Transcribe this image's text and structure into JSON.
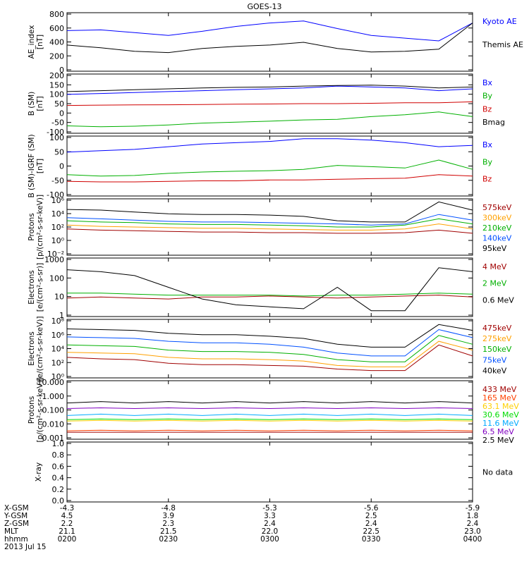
{
  "title": "GOES-13",
  "panels": [
    {
      "id": "ae",
      "ylabel": [
        "AE_index",
        "[nT]"
      ],
      "yticks": [
        "0",
        "200",
        "400",
        "600",
        "800"
      ],
      "scale": "linear",
      "ylim": [
        0,
        850
      ],
      "legend": [
        {
          "text": "Kyoto AE",
          "color": "#0000ff"
        },
        {
          "text": "Themis AE",
          "color": "#000000"
        }
      ]
    },
    {
      "id": "bsm",
      "ylabel": [
        "B (SM)",
        "[nT]"
      ],
      "yticks": [
        "200",
        "150",
        "100",
        "50",
        "0",
        "-50",
        "-100"
      ],
      "scale": "linear",
      "ylim": [
        -110,
        210
      ],
      "legend": [
        {
          "text": "Bx",
          "color": "#0000ff"
        },
        {
          "text": "By",
          "color": "#00b000"
        },
        {
          "text": "Bz",
          "color": "#d00000"
        },
        {
          "text": "Bmag",
          "color": "#000000"
        }
      ]
    },
    {
      "id": "bigrf",
      "ylabel": [
        "B (SM)-IGRF (SM)",
        "[nT]"
      ],
      "yticks": [
        "100",
        "50",
        "0",
        "-50",
        "-100"
      ],
      "scale": "linear",
      "ylim": [
        -115,
        110
      ],
      "legend": [
        {
          "text": "Bx",
          "color": "#0000ff"
        },
        {
          "text": "By",
          "color": "#00b000"
        },
        {
          "text": "Bz",
          "color": "#d00000"
        }
      ]
    },
    {
      "id": "protons_kev",
      "ylabel": [
        "Protons",
        "[p/(cm²-s-sr-keV)]"
      ],
      "yticks": [
        "10⁶",
        "10⁴",
        "10²",
        "10⁰",
        "10⁻²"
      ],
      "scale": "log",
      "ylim": [
        -3,
        6
      ],
      "legend": [
        {
          "text": "575keV",
          "color": "#a00000"
        },
        {
          "text": "300keV",
          "color": "#ffa000"
        },
        {
          "text": "210keV",
          "color": "#00b000"
        },
        {
          "text": "140keV",
          "color": "#0050ff"
        },
        {
          "text": "95keV",
          "color": "#000000"
        }
      ]
    },
    {
      "id": "electrons_mev",
      "ylabel": [
        "Electrons",
        "[e/(cm²-s-sr)]"
      ],
      "yticks": [
        "1000",
        "100",
        "10",
        "1"
      ],
      "scale": "log",
      "ylim": [
        0,
        3
      ],
      "legend": [
        {
          "text": "4 MeV",
          "color": "#a00000"
        },
        {
          "text": "2 MeV",
          "color": "#00b000"
        },
        {
          "text": "0.6 MeV",
          "color": "#000000"
        }
      ]
    },
    {
      "id": "electrons_kev",
      "ylabel": [
        "Electrons",
        "[e/(cm²-s-sr-keV)]"
      ],
      "yticks": [
        "10⁸",
        "10⁶",
        "10⁴",
        "10²",
        "10⁰"
      ],
      "scale": "log",
      "ylim": [
        0,
        8
      ],
      "legend": [
        {
          "text": "475keV",
          "color": "#a00000"
        },
        {
          "text": "275keV",
          "color": "#ffa000"
        },
        {
          "text": "150keV",
          "color": "#00b000"
        },
        {
          "text": "75keV",
          "color": "#0050ff"
        },
        {
          "text": "40keV",
          "color": "#000000"
        }
      ]
    },
    {
      "id": "protons_mev",
      "ylabel": [
        "Protons",
        "[p/(cm²-s-sr-keV)]"
      ],
      "yticks": [
        "10.000",
        "1.000",
        "0.100",
        "0.010",
        "0.001"
      ],
      "scale": "log",
      "ylim": [
        -3.2,
        1
      ],
      "legend": [
        {
          "text": "433 MeV",
          "color": "#a00000"
        },
        {
          "text": "165 MeV",
          "color": "#ff4000"
        },
        {
          "text": "63.1 MeV",
          "color": "#ffd000"
        },
        {
          "text": "30.6 MeV",
          "color": "#00dd00"
        },
        {
          "text": "11.6 MeV",
          "color": "#00aaff"
        },
        {
          "text": "6.5 MeV",
          "color": "#8000c0"
        },
        {
          "text": "2.5 MeV",
          "color": "#000000"
        }
      ]
    },
    {
      "id": "xray",
      "ylabel": [
        "X-ray"
      ],
      "yticks": [
        "1.0",
        "0.8",
        "0.6",
        "0.4",
        "0.2",
        "0.0"
      ],
      "scale": "linear",
      "ylim": [
        0,
        1
      ],
      "note": "No data",
      "legend": []
    }
  ],
  "xaxis": {
    "row_labels": [
      "X-GSM",
      "Y-GSM",
      "Z-GSM",
      "MLT",
      "hhmm",
      "2013 Jul 15"
    ],
    "columns": [
      [
        "-4.3",
        "4.5",
        "2.2",
        "21.1",
        "0200"
      ],
      [
        "-4.8",
        "3.9",
        "2.3",
        "21.5",
        "0230"
      ],
      [
        "-5.3",
        "3.3",
        "2.4",
        "22.0",
        "0300"
      ],
      [
        "-5.6",
        "2.5",
        "2.4",
        "22.5",
        "0330"
      ],
      [
        "-5.9",
        "1.8",
        "2.4",
        "23.0",
        "0400"
      ]
    ]
  },
  "chart_data": {
    "type": "line",
    "title": "GOES-13",
    "x": [
      "0200",
      "0210",
      "0220",
      "0230",
      "0240",
      "0250",
      "0300",
      "0310",
      "0320",
      "0330",
      "0340",
      "0350",
      "0400"
    ],
    "xlabel": "hhmm",
    "panels": [
      {
        "ylabel": "AE_index [nT]",
        "scale": "linear",
        "ylim": [
          0,
          850
        ],
        "series": [
          {
            "name": "Kyoto AE",
            "values": [
              590,
              600,
              560,
              520,
              580,
              650,
              700,
              730,
              620,
              520,
              480,
              440,
              700
            ]
          },
          {
            "name": "Themis AE",
            "values": [
              380,
              340,
              290,
              270,
              330,
              360,
              380,
              420,
              330,
              280,
              290,
              320,
              700
            ]
          }
        ]
      },
      {
        "ylabel": "B (SM) [nT]",
        "scale": "linear",
        "ylim": [
          -110,
          210
        ],
        "series": [
          {
            "name": "Bx",
            "values": [
              100,
              105,
              110,
              115,
              120,
              125,
              130,
              135,
              145,
              140,
              135,
              120,
              130
            ]
          },
          {
            "name": "By",
            "values": [
              -70,
              -75,
              -72,
              -65,
              -55,
              -50,
              -45,
              -38,
              -35,
              -20,
              -10,
              5,
              -20
            ]
          },
          {
            "name": "Bz",
            "values": [
              40,
              42,
              43,
              44,
              45,
              47,
              48,
              50,
              50,
              52,
              55,
              55,
              60
            ]
          },
          {
            "name": "Bmag",
            "values": [
              115,
              120,
              125,
              130,
              135,
              138,
              140,
              145,
              148,
              150,
              145,
              135,
              140
            ]
          }
        ]
      },
      {
        "ylabel": "B (SM)-IGRF (SM) [nT]",
        "scale": "linear",
        "ylim": [
          -115,
          110
        ],
        "series": [
          {
            "name": "Bx",
            "values": [
              50,
              55,
              60,
              70,
              80,
              85,
              90,
              100,
              100,
              95,
              85,
              70,
              75
            ]
          },
          {
            "name": "By",
            "values": [
              -35,
              -40,
              -38,
              -30,
              -25,
              -22,
              -20,
              -15,
              0,
              -5,
              -10,
              20,
              -15
            ]
          },
          {
            "name": "Bz",
            "values": [
              -60,
              -62,
              -62,
              -60,
              -58,
              -58,
              -55,
              -55,
              -52,
              -50,
              -48,
              -35,
              -40
            ]
          }
        ]
      },
      {
        "ylabel": "Protons [p/(cm2-s-sr-keV)]",
        "scale": "log",
        "ylim": [
          -3,
          6
        ],
        "series": [
          {
            "name": "575keV",
            "values": [
              1.2,
              1.0,
              0.9,
              0.8,
              0.7,
              0.7,
              0.6,
              0.6,
              0.5,
              0.5,
              0.6,
              1.0,
              0.5
            ]
          },
          {
            "name": "300keV",
            "values": [
              1.8,
              1.6,
              1.5,
              1.4,
              1.3,
              1.3,
              1.2,
              1.1,
              1.0,
              1.0,
              1.2,
              2.0,
              1.2
            ]
          },
          {
            "name": "210keV",
            "values": [
              2.5,
              2.3,
              2.2,
              2.0,
              1.9,
              1.9,
              1.8,
              1.7,
              1.5,
              1.5,
              1.8,
              2.8,
              2.0
            ]
          },
          {
            "name": "140keV",
            "values": [
              3.0,
              2.8,
              2.6,
              2.4,
              2.3,
              2.3,
              2.2,
              2.1,
              2.0,
              1.8,
              2.0,
              3.5,
              2.6
            ]
          },
          {
            "name": "95keV",
            "values": [
              4.3,
              4.2,
              3.9,
              3.6,
              3.5,
              3.5,
              3.4,
              3.2,
              2.5,
              2.3,
              2.3,
              5.5,
              4.2
            ]
          }
        ]
      },
      {
        "ylabel": "Electrons [e/(cm2-s-sr)]",
        "scale": "log",
        "ylim": [
          0,
          3
        ],
        "series": [
          {
            "name": "4 MeV",
            "values": [
              0.95,
              1.0,
              0.95,
              0.9,
              1.0,
              1.0,
              1.05,
              1.0,
              0.95,
              1.0,
              1.05,
              1.1,
              1.0
            ]
          },
          {
            "name": "2 MeV",
            "values": [
              1.2,
              1.2,
              1.15,
              1.1,
              1.1,
              1.1,
              1.1,
              1.05,
              1.1,
              1.1,
              1.15,
              1.2,
              1.15
            ]
          },
          {
            "name": "0.6 MeV",
            "values": [
              2.4,
              2.3,
              2.1,
              1.5,
              0.9,
              0.6,
              0.5,
              0.4,
              1.5,
              0.3,
              0.3,
              2.5,
              2.3
            ]
          }
        ]
      },
      {
        "ylabel": "Electrons [e/(cm2-s-sr-keV)]",
        "scale": "log",
        "ylim": [
          0,
          8
        ],
        "series": [
          {
            "name": "475keV",
            "values": [
              2.8,
              2.6,
              2.5,
              2.0,
              1.8,
              1.8,
              1.7,
              1.6,
              1.2,
              1.0,
              1.0,
              4.5,
              3.0
            ]
          },
          {
            "name": "275keV",
            "values": [
              3.5,
              3.4,
              3.3,
              2.8,
              2.6,
              2.6,
              2.5,
              2.3,
              1.7,
              1.5,
              1.5,
              5.0,
              3.8
            ]
          },
          {
            "name": "150keV",
            "values": [
              4.5,
              4.4,
              4.3,
              3.8,
              3.6,
              3.6,
              3.5,
              3.2,
              2.5,
              2.2,
              2.2,
              5.8,
              4.6
            ]
          },
          {
            "name": "75keV",
            "values": [
              5.6,
              5.5,
              5.4,
              5.0,
              4.8,
              4.8,
              4.6,
              4.2,
              3.4,
              3.0,
              3.0,
              6.6,
              5.5
            ]
          },
          {
            "name": "40keV",
            "values": [
              6.7,
              6.6,
              6.5,
              6.1,
              5.9,
              5.9,
              5.7,
              5.4,
              4.6,
              4.2,
              4.2,
              7.3,
              6.5
            ]
          }
        ]
      },
      {
        "ylabel": "Protons [p/(cm2-s-sr-keV)]",
        "scale": "log",
        "ylim": [
          -3.2,
          1
        ],
        "series": [
          {
            "name": "433 MeV",
            "values": [
              -2.7,
              -2.7,
              -2.7,
              -2.7,
              -2.7,
              -2.7,
              -2.7,
              -2.7,
              -2.7,
              -2.7,
              -2.7,
              -2.7,
              -2.7
            ]
          },
          {
            "name": "165 MeV",
            "values": [
              -2.6,
              -2.55,
              -2.6,
              -2.55,
              -2.6,
              -2.55,
              -2.6,
              -2.55,
              -2.6,
              -2.55,
              -2.6,
              -2.55,
              -2.6
            ]
          },
          {
            "name": "63.1 MeV",
            "values": [
              -1.9,
              -1.85,
              -1.9,
              -1.85,
              -1.9,
              -1.85,
              -1.9,
              -1.85,
              -1.9,
              -1.85,
              -1.9,
              -1.85,
              -1.9
            ]
          },
          {
            "name": "30.6 MeV",
            "values": [
              -1.8,
              -1.75,
              -1.8,
              -1.75,
              -1.8,
              -1.75,
              -1.8,
              -1.75,
              -1.8,
              -1.75,
              -1.8,
              -1.75,
              -1.8
            ]
          },
          {
            "name": "11.6 MeV",
            "values": [
              -1.5,
              -1.4,
              -1.5,
              -1.4,
              -1.5,
              -1.4,
              -1.5,
              -1.4,
              -1.5,
              -1.4,
              -1.5,
              -1.4,
              -1.5
            ]
          },
          {
            "name": "6.5 MeV",
            "values": [
              -1.0,
              -0.95,
              -1.0,
              -0.95,
              -1.0,
              -0.95,
              -1.0,
              -0.95,
              -1.0,
              -0.95,
              -1.0,
              -0.95,
              -1.0
            ]
          },
          {
            "name": "2.5 MeV",
            "values": [
              -0.6,
              -0.5,
              -0.6,
              -0.5,
              -0.6,
              -0.5,
              -0.6,
              -0.5,
              -0.6,
              -0.5,
              -0.6,
              -0.5,
              -0.6
            ]
          }
        ]
      },
      {
        "ylabel": "X-ray",
        "scale": "linear",
        "ylim": [
          0,
          1
        ],
        "series": []
      }
    ]
  }
}
